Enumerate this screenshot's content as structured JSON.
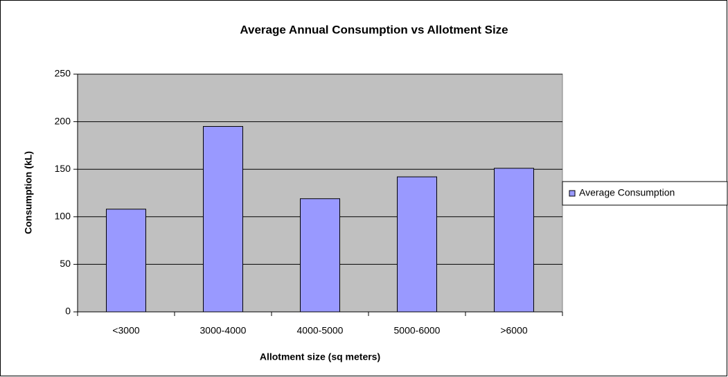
{
  "chart_data": {
    "type": "bar",
    "title": "Average Annual Consumption vs Allotment Size",
    "x_label": "Allotment size (sq meters)",
    "y_label": "Consumption (kL)",
    "categories": [
      "<3000",
      "3000-4000",
      "4000-5000",
      "5000-6000",
      ">6000"
    ],
    "series": [
      {
        "name": "Average Consumption",
        "color": "#9999ff",
        "values": [
          108,
          195,
          119,
          142,
          151
        ]
      }
    ],
    "ylim": [
      0,
      250
    ],
    "yticks": [
      0,
      50,
      100,
      150,
      200,
      250
    ],
    "grid": true,
    "legend": "right"
  }
}
